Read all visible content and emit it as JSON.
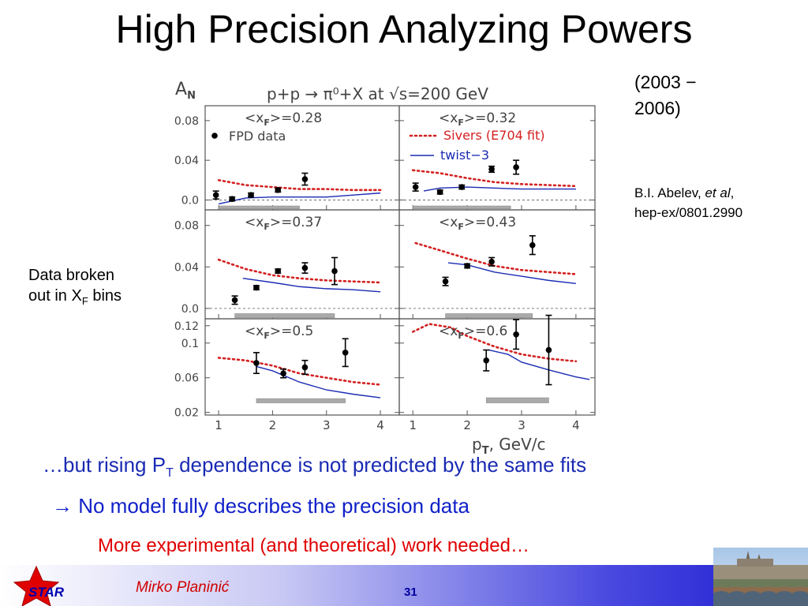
{
  "slide": {
    "title": "High Precision Analyzing Powers",
    "years": "(2003 − 2006)",
    "ref_author": "B.I. Abelev, ",
    "ref_etal": "et al",
    "ref_comma": ",",
    "ref_arxiv": "hep-ex/0801.2990",
    "note_text": "Data broken out in X",
    "note_sub": "F",
    "note_tail": " bins",
    "line1_pre": "…but rising P",
    "line1_sub": "T",
    "line1_post": " dependence is not predicted by the same fits",
    "line2": "→ No model fully describes the precision data",
    "line3": "More experimental (and theoretical) work needed…",
    "author": "Mirko Planinić",
    "page": "31",
    "logo_text": "STAR"
  },
  "colors": {
    "sivers": "#d42020",
    "twist3": "#1a2bb3",
    "data": "#000000",
    "band": "#aaaaaa",
    "axis_text": "#444444"
  },
  "chart_data": {
    "type": "scatter",
    "title": "p+p → π⁰+X at √s=200 GeV",
    "ylabel": "A",
    "ylabel_sub": "N",
    "xlabel": "p",
    "xlabel_sub": "T",
    "xlabel_unit": ", GeV/c",
    "xlim": [
      0.75,
      4.35
    ],
    "x_ticks": [
      1,
      2,
      3,
      4
    ],
    "legend": {
      "data": "FPD data",
      "sivers": "Sivers (E704 fit)",
      "twist3": "twist−3"
    },
    "panels": [
      {
        "label": "<x",
        "label_sub": "F",
        "label_val": ">=0.28",
        "ylim": [
          -0.01,
          0.095
        ],
        "y_ticks": [
          0.0,
          0.04,
          0.08
        ],
        "y_tick_labels": [
          "0.0",
          "0.04",
          "0.08"
        ],
        "zero_line": true,
        "data": [
          {
            "x": 0.95,
            "y": 0.005,
            "err": 0.004
          },
          {
            "x": 1.25,
            "y": 0.001,
            "err": 0.002
          },
          {
            "x": 1.6,
            "y": 0.005,
            "err": 0.002
          },
          {
            "x": 2.1,
            "y": 0.01,
            "err": 0.002
          },
          {
            "x": 2.6,
            "y": 0.021,
            "err": 0.006
          }
        ],
        "sivers": {
          "x": [
            1.0,
            1.5,
            2.0,
            2.5,
            3.0,
            3.5,
            4.0
          ],
          "y": [
            0.02,
            0.015,
            0.013,
            0.011,
            0.011,
            0.01,
            0.01
          ]
        },
        "twist3": {
          "x": [
            1.0,
            1.5,
            2.0,
            2.5,
            3.0,
            3.5,
            4.0
          ],
          "y": [
            -0.004,
            0.002,
            0.003,
            0.003,
            0.003,
            0.005,
            0.007
          ]
        },
        "band": {
          "x": [
            1.0,
            2.5
          ],
          "y": [
            -0.009,
            -0.006
          ]
        }
      },
      {
        "label": "<x",
        "label_sub": "F",
        "label_val": ">=0.32",
        "ylim": [
          -0.01,
          0.095
        ],
        "y_ticks": [
          0.0,
          0.04,
          0.08
        ],
        "y_tick_labels": [
          "0.0",
          "0.04",
          "0.08"
        ],
        "zero_line": true,
        "show_legend": true,
        "data": [
          {
            "x": 1.05,
            "y": 0.013,
            "err": 0.004
          },
          {
            "x": 1.5,
            "y": 0.008,
            "err": 0.002
          },
          {
            "x": 1.9,
            "y": 0.013,
            "err": 0.002
          },
          {
            "x": 2.45,
            "y": 0.031,
            "err": 0.003
          },
          {
            "x": 2.9,
            "y": 0.033,
            "err": 0.007
          }
        ],
        "sivers": {
          "x": [
            1.0,
            1.5,
            2.0,
            2.5,
            3.0,
            3.5,
            4.0
          ],
          "y": [
            0.03,
            0.027,
            0.022,
            0.018,
            0.016,
            0.015,
            0.014
          ]
        },
        "twist3": {
          "x": [
            1.2,
            1.5,
            2.0,
            2.5,
            3.0,
            3.5,
            4.0
          ],
          "y": [
            0.009,
            0.012,
            0.013,
            0.012,
            0.011,
            0.011,
            0.011
          ]
        },
        "band": {
          "x": [
            1.0,
            2.8
          ],
          "y": [
            -0.009,
            -0.006
          ]
        }
      },
      {
        "label": "<x",
        "label_sub": "F",
        "label_val": ">=0.37",
        "ylim": [
          -0.01,
          0.095
        ],
        "y_ticks": [
          0.0,
          0.04,
          0.08
        ],
        "y_tick_labels": [
          "0.0",
          "0.04",
          "0.08"
        ],
        "zero_line": true,
        "data": [
          {
            "x": 1.3,
            "y": 0.008,
            "err": 0.004
          },
          {
            "x": 1.7,
            "y": 0.02,
            "err": 0.002
          },
          {
            "x": 2.1,
            "y": 0.036,
            "err": 0.002
          },
          {
            "x": 2.6,
            "y": 0.039,
            "err": 0.005
          },
          {
            "x": 3.15,
            "y": 0.036,
            "err": 0.013
          }
        ],
        "sivers": {
          "x": [
            1.0,
            1.5,
            2.0,
            2.5,
            3.0,
            3.5,
            4.0
          ],
          "y": [
            0.047,
            0.038,
            0.032,
            0.029,
            0.027,
            0.026,
            0.025
          ]
        },
        "twist3": {
          "x": [
            1.45,
            2.0,
            2.5,
            3.0,
            3.5,
            4.0
          ],
          "y": [
            0.029,
            0.025,
            0.021,
            0.019,
            0.018,
            0.016
          ]
        },
        "band": {
          "x": [
            1.3,
            3.15
          ],
          "y": [
            -0.009,
            -0.005
          ]
        }
      },
      {
        "label": "<x",
        "label_sub": "F",
        "label_val": ">=0.43",
        "ylim": [
          -0.01,
          0.095
        ],
        "y_ticks": [
          0.0,
          0.04,
          0.08
        ],
        "y_tick_labels": [
          "0.0",
          "0.04",
          "0.08"
        ],
        "zero_line": true,
        "data": [
          {
            "x": 1.6,
            "y": 0.026,
            "err": 0.004
          },
          {
            "x": 2.0,
            "y": 0.041,
            "err": 0.002
          },
          {
            "x": 2.45,
            "y": 0.045,
            "err": 0.004
          },
          {
            "x": 3.2,
            "y": 0.061,
            "err": 0.009
          }
        ],
        "sivers": {
          "x": [
            1.05,
            1.5,
            2.0,
            2.5,
            3.0,
            3.5,
            4.0
          ],
          "y": [
            0.063,
            0.056,
            0.048,
            0.041,
            0.037,
            0.035,
            0.033
          ]
        },
        "twist3": {
          "x": [
            1.65,
            2.0,
            2.5,
            3.0,
            3.5,
            4.0
          ],
          "y": [
            0.044,
            0.042,
            0.035,
            0.031,
            0.027,
            0.024
          ]
        },
        "band": {
          "x": [
            1.6,
            3.2
          ],
          "y": [
            -0.009,
            -0.005
          ]
        }
      },
      {
        "label": "<x",
        "label_sub": "F",
        "label_val": ">=0.5",
        "ylim": [
          0.017,
          0.128
        ],
        "y_ticks": [
          0.02,
          0.06,
          0.1,
          0.12
        ],
        "y_tick_labels": [
          "0.02",
          "0.06",
          "0.1",
          "0.12"
        ],
        "zero_line": false,
        "data": [
          {
            "x": 1.7,
            "y": 0.077,
            "err": 0.012
          },
          {
            "x": 2.2,
            "y": 0.065,
            "err": 0.005
          },
          {
            "x": 2.6,
            "y": 0.072,
            "err": 0.008
          },
          {
            "x": 3.35,
            "y": 0.089,
            "err": 0.016
          }
        ],
        "sivers": {
          "x": [
            1.0,
            1.5,
            2.0,
            2.5,
            3.0,
            3.5,
            4.0
          ],
          "y": [
            0.083,
            0.08,
            0.074,
            0.065,
            0.06,
            0.055,
            0.052
          ]
        },
        "twist3": {
          "x": [
            1.7,
            2.0,
            2.5,
            3.0,
            3.5,
            4.0
          ],
          "y": [
            0.073,
            0.068,
            0.055,
            0.046,
            0.041,
            0.037
          ]
        },
        "band": {
          "x": [
            1.7,
            3.35
          ],
          "y": [
            0.031,
            0.036
          ]
        }
      },
      {
        "label": "<x",
        "label_sub": "F",
        "label_val": ">=0.6",
        "ylim": [
          0.017,
          0.128
        ],
        "y_ticks": [
          0.02,
          0.06,
          0.1,
          0.12
        ],
        "y_tick_labels": [
          "0.02",
          "0.06",
          "0.1",
          "0.12"
        ],
        "zero_line": false,
        "data": [
          {
            "x": 2.35,
            "y": 0.08,
            "err": 0.012
          },
          {
            "x": 2.9,
            "y": 0.11,
            "err": 0.017
          },
          {
            "x": 3.5,
            "y": 0.092,
            "err": 0.04
          }
        ],
        "sivers": {
          "x": [
            1.0,
            1.3,
            1.7,
            2.0,
            2.5,
            3.0,
            3.5,
            4.0
          ],
          "y": [
            0.113,
            0.122,
            0.118,
            0.108,
            0.096,
            0.087,
            0.082,
            0.079
          ]
        },
        "twist3": {
          "x": [
            2.4,
            2.75,
            3.0,
            3.5,
            4.0,
            4.25
          ],
          "y": [
            0.092,
            0.087,
            0.078,
            0.069,
            0.061,
            0.058
          ]
        },
        "band": {
          "x": [
            2.35,
            3.5
          ],
          "y": [
            0.031,
            0.037
          ]
        }
      }
    ]
  }
}
